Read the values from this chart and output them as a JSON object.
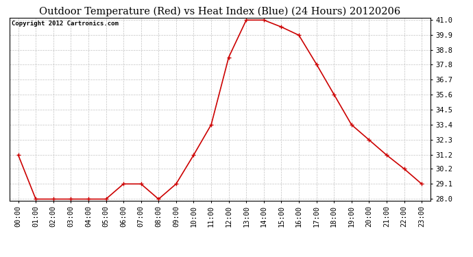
{
  "title": "Outdoor Temperature (Red) vs Heat Index (Blue) (24 Hours) 20120206",
  "copyright_text": "Copyright 2012 Cartronics.com",
  "x_labels": [
    "00:00",
    "01:00",
    "02:00",
    "03:00",
    "04:00",
    "05:00",
    "06:00",
    "07:00",
    "08:00",
    "09:00",
    "10:00",
    "11:00",
    "12:00",
    "13:00",
    "14:00",
    "15:00",
    "16:00",
    "17:00",
    "18:00",
    "19:00",
    "20:00",
    "21:00",
    "22:00",
    "23:00"
  ],
  "temp_values": [
    31.2,
    28.0,
    28.0,
    28.0,
    28.0,
    28.0,
    29.1,
    29.1,
    28.0,
    29.1,
    31.2,
    33.4,
    38.3,
    41.0,
    41.0,
    40.5,
    39.9,
    37.8,
    35.6,
    33.4,
    32.3,
    31.2,
    30.2,
    29.1
  ],
  "line_color_temp": "#cc0000",
  "marker": "+",
  "marker_size": 4,
  "marker_edge_width": 1.0,
  "line_width": 1.2,
  "ylim_min": 27.9,
  "ylim_max": 41.15,
  "yticks": [
    28.0,
    29.1,
    30.2,
    31.2,
    32.3,
    33.4,
    34.5,
    35.6,
    36.7,
    37.8,
    38.8,
    39.9,
    41.0
  ],
  "background_color": "#ffffff",
  "grid_color": "#bbbbbb",
  "title_fontsize": 10.5,
  "copyright_fontsize": 6.5,
  "tick_fontsize": 7.5
}
